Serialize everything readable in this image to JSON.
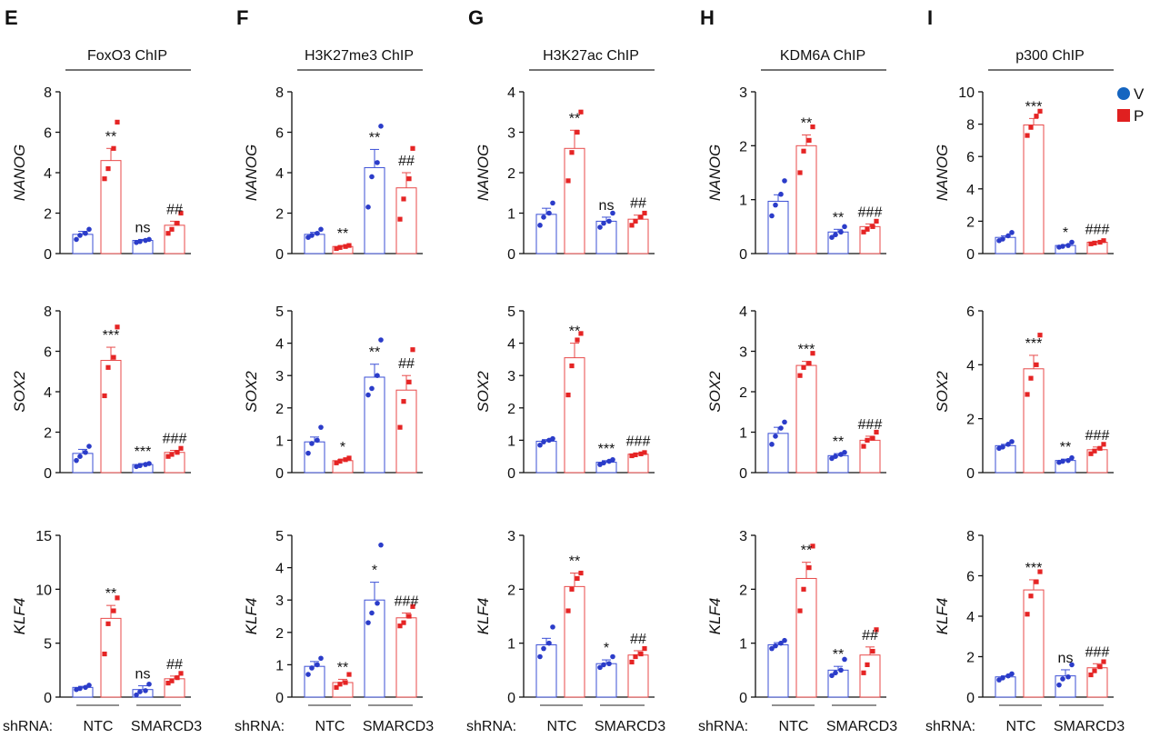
{
  "legend": {
    "items": [
      {
        "label": "V",
        "color": "#1565c0",
        "shape": "circle"
      },
      {
        "label": "P",
        "color": "#e02020",
        "shape": "square"
      }
    ],
    "placement": "top-right"
  },
  "colors": {
    "V": "#2b3cc9",
    "P": "#e52424",
    "V_bar": "#3b4fd6",
    "P_bar": "#e84a4a"
  },
  "shrna_label": "shRNA:",
  "group_labels": [
    "NTC",
    "SMARCD3"
  ],
  "genes": [
    "NANOG",
    "SOX2",
    "KLF4"
  ],
  "chart_data": [
    {
      "panel": "E",
      "title": "FoxO3 ChIP",
      "type": "bar",
      "rows": [
        {
          "ylabel": "NANOG",
          "ylim": [
            0,
            8
          ],
          "ticks": [
            0,
            2,
            4,
            6,
            8
          ],
          "values": [
            0.95,
            4.6,
            0.65,
            1.4
          ],
          "errors": [
            0.15,
            0.6,
            0.05,
            0.2
          ],
          "points": [
            [
              0.7,
              0.9,
              1.0,
              1.2
            ],
            [
              3.7,
              4.2,
              5.2,
              6.5
            ],
            [
              0.55,
              0.6,
              0.65,
              0.7
            ],
            [
              1.0,
              1.2,
              1.5,
              2.0
            ]
          ],
          "annotations": [
            "",
            "**",
            "ns",
            "##"
          ]
        },
        {
          "ylabel": "SOX2",
          "ylim": [
            0,
            8
          ],
          "ticks": [
            0,
            2,
            4,
            6,
            8
          ],
          "values": [
            0.95,
            5.55,
            0.4,
            1.0
          ],
          "errors": [
            0.2,
            0.65,
            0.05,
            0.1
          ],
          "points": [
            [
              0.6,
              0.8,
              1.0,
              1.3
            ],
            [
              3.8,
              5.2,
              5.7,
              7.2
            ],
            [
              0.3,
              0.35,
              0.4,
              0.45
            ],
            [
              0.8,
              0.9,
              1.0,
              1.2
            ]
          ],
          "annotations": [
            "",
            "***",
            "***",
            "###"
          ]
        },
        {
          "ylabel": "KLF4",
          "ylim": [
            0,
            15
          ],
          "ticks": [
            0,
            5,
            10,
            15
          ],
          "values": [
            0.9,
            7.3,
            0.7,
            1.7
          ],
          "errors": [
            0.1,
            1.2,
            0.35,
            0.25
          ],
          "points": [
            [
              0.7,
              0.8,
              0.9,
              1.1
            ],
            [
              4.0,
              6.8,
              8.0,
              9.2
            ],
            [
              0.2,
              0.5,
              0.6,
              1.2
            ],
            [
              1.3,
              1.5,
              1.8,
              2.2
            ]
          ],
          "annotations": [
            "",
            "**",
            "ns",
            "##"
          ]
        }
      ]
    },
    {
      "panel": "F",
      "title": "H3K27me3 ChIP",
      "type": "bar",
      "rows": [
        {
          "ylabel": "NANOG",
          "ylim": [
            0,
            8
          ],
          "ticks": [
            0,
            2,
            4,
            6,
            8
          ],
          "values": [
            0.95,
            0.35,
            4.25,
            3.25
          ],
          "errors": [
            0.1,
            0.05,
            0.9,
            0.75
          ],
          "points": [
            [
              0.8,
              0.9,
              1.0,
              1.2
            ],
            [
              0.25,
              0.3,
              0.35,
              0.4
            ],
            [
              2.3,
              3.8,
              4.5,
              6.3
            ],
            [
              1.7,
              2.7,
              3.7,
              5.2
            ]
          ],
          "annotations": [
            "",
            "**",
            "**",
            "##"
          ]
        },
        {
          "ylabel": "SOX2",
          "ylim": [
            0,
            5
          ],
          "ticks": [
            0,
            1,
            2,
            3,
            4,
            5
          ],
          "values": [
            0.95,
            0.37,
            2.95,
            2.55
          ],
          "errors": [
            0.15,
            0.05,
            0.4,
            0.45
          ],
          "points": [
            [
              0.6,
              0.9,
              1.0,
              1.4
            ],
            [
              0.3,
              0.35,
              0.4,
              0.45
            ],
            [
              2.4,
              2.6,
              3.0,
              4.1
            ],
            [
              1.4,
              2.2,
              2.8,
              3.8
            ]
          ],
          "annotations": [
            "",
            "*",
            "**",
            "##"
          ]
        },
        {
          "ylabel": "KLF4",
          "ylim": [
            0,
            5
          ],
          "ticks": [
            0,
            1,
            2,
            3,
            4,
            5
          ],
          "values": [
            0.95,
            0.45,
            3.0,
            2.45
          ],
          "errors": [
            0.15,
            0.1,
            0.55,
            0.15
          ],
          "points": [
            [
              0.7,
              0.9,
              1.0,
              1.2
            ],
            [
              0.3,
              0.4,
              0.45,
              0.7
            ],
            [
              2.3,
              2.6,
              2.9,
              4.7
            ],
            [
              2.2,
              2.3,
              2.5,
              2.8
            ]
          ],
          "annotations": [
            "",
            "**",
            "*",
            "###"
          ]
        }
      ]
    },
    {
      "panel": "G",
      "title": "H3K27ac ChIP",
      "type": "bar",
      "rows": [
        {
          "ylabel": "NANOG",
          "ylim": [
            0,
            4
          ],
          "ticks": [
            0,
            1,
            2,
            3,
            4
          ],
          "values": [
            0.97,
            2.6,
            0.8,
            0.85
          ],
          "errors": [
            0.15,
            0.45,
            0.1,
            0.1
          ],
          "points": [
            [
              0.7,
              0.9,
              1.0,
              1.25
            ],
            [
              1.8,
              2.5,
              3.0,
              3.5
            ],
            [
              0.65,
              0.75,
              0.8,
              1.0
            ],
            [
              0.7,
              0.8,
              0.9,
              1.0
            ]
          ],
          "annotations": [
            "",
            "**",
            "ns",
            "##"
          ]
        },
        {
          "ylabel": "SOX2",
          "ylim": [
            0,
            5
          ],
          "ticks": [
            0,
            1,
            2,
            3,
            4,
            5
          ],
          "values": [
            0.97,
            3.55,
            0.32,
            0.57
          ],
          "errors": [
            0.05,
            0.45,
            0.05,
            0.03
          ],
          "points": [
            [
              0.85,
              0.95,
              1.0,
              1.05
            ],
            [
              2.4,
              3.3,
              4.1,
              4.3
            ],
            [
              0.25,
              0.3,
              0.35,
              0.4
            ],
            [
              0.52,
              0.55,
              0.58,
              0.62
            ]
          ],
          "annotations": [
            "",
            "**",
            "***",
            "###"
          ]
        },
        {
          "ylabel": "KLF4",
          "ylim": [
            0,
            3
          ],
          "ticks": [
            0,
            1,
            2,
            3
          ],
          "values": [
            0.97,
            2.05,
            0.62,
            0.78
          ],
          "errors": [
            0.12,
            0.25,
            0.07,
            0.08
          ],
          "points": [
            [
              0.75,
              0.9,
              1.0,
              1.3
            ],
            [
              1.6,
              2.0,
              2.2,
              2.3
            ],
            [
              0.55,
              0.6,
              0.62,
              0.75
            ],
            [
              0.65,
              0.75,
              0.8,
              0.9
            ]
          ],
          "annotations": [
            "",
            "**",
            "*",
            "##"
          ]
        }
      ]
    },
    {
      "panel": "H",
      "title": "KDM6A ChIP",
      "type": "bar",
      "rows": [
        {
          "ylabel": "NANOG",
          "ylim": [
            0,
            3
          ],
          "ticks": [
            0,
            1,
            2,
            3
          ],
          "values": [
            0.97,
            2.0,
            0.4,
            0.5
          ],
          "errors": [
            0.12,
            0.2,
            0.05,
            0.05
          ],
          "points": [
            [
              0.7,
              0.9,
              1.1,
              1.35
            ],
            [
              1.5,
              1.9,
              2.1,
              2.35
            ],
            [
              0.3,
              0.35,
              0.4,
              0.5
            ],
            [
              0.4,
              0.45,
              0.5,
              0.6
            ]
          ],
          "annotations": [
            "",
            "**",
            "**",
            "###"
          ]
        },
        {
          "ylabel": "SOX2",
          "ylim": [
            0,
            4
          ],
          "ticks": [
            0,
            1,
            2,
            3,
            4
          ],
          "values": [
            0.97,
            2.65,
            0.42,
            0.8
          ],
          "errors": [
            0.15,
            0.1,
            0.05,
            0.1
          ],
          "points": [
            [
              0.7,
              0.9,
              1.1,
              1.25
            ],
            [
              2.4,
              2.6,
              2.7,
              2.95
            ],
            [
              0.35,
              0.4,
              0.45,
              0.5
            ],
            [
              0.65,
              0.8,
              0.85,
              1.0
            ]
          ],
          "annotations": [
            "",
            "***",
            "**",
            "###"
          ]
        },
        {
          "ylabel": "KLF4",
          "ylim": [
            0,
            3
          ],
          "ticks": [
            0,
            1,
            2,
            3
          ],
          "values": [
            0.97,
            2.2,
            0.5,
            0.78
          ],
          "errors": [
            0.04,
            0.3,
            0.07,
            0.15
          ],
          "points": [
            [
              0.9,
              0.95,
              1.0,
              1.05
            ],
            [
              1.6,
              2.0,
              2.4,
              2.8
            ],
            [
              0.4,
              0.45,
              0.5,
              0.7
            ],
            [
              0.45,
              0.6,
              0.85,
              1.25
            ]
          ],
          "annotations": [
            "",
            "**",
            "**",
            "##"
          ]
        }
      ]
    },
    {
      "panel": "I",
      "title": "p300 ChIP",
      "type": "bar",
      "rows": [
        {
          "ylabel": "NANOG",
          "ylim": [
            0,
            10
          ],
          "ticks": [
            0,
            2,
            4,
            6,
            8,
            10
          ],
          "values": [
            1.0,
            7.95,
            0.5,
            0.7
          ],
          "errors": [
            0.1,
            0.4,
            0.05,
            0.05
          ],
          "points": [
            [
              0.8,
              0.9,
              1.1,
              1.3
            ],
            [
              7.3,
              7.8,
              8.5,
              8.8
            ],
            [
              0.4,
              0.45,
              0.5,
              0.7
            ],
            [
              0.6,
              0.65,
              0.7,
              0.8
            ]
          ],
          "annotations": [
            "",
            "***",
            "*",
            "###"
          ]
        },
        {
          "ylabel": "SOX2",
          "ylim": [
            0,
            6
          ],
          "ticks": [
            0,
            2,
            4,
            6
          ],
          "values": [
            1.0,
            3.85,
            0.45,
            0.85
          ],
          "errors": [
            0.05,
            0.5,
            0.05,
            0.1
          ],
          "points": [
            [
              0.9,
              0.95,
              1.05,
              1.15
            ],
            [
              2.9,
              3.5,
              4.0,
              5.1
            ],
            [
              0.38,
              0.42,
              0.45,
              0.55
            ],
            [
              0.7,
              0.8,
              0.9,
              1.05
            ]
          ],
          "annotations": [
            "",
            "***",
            "**",
            "###"
          ]
        },
        {
          "ylabel": "KLF4",
          "ylim": [
            0,
            8
          ],
          "ticks": [
            0,
            2,
            4,
            6,
            8
          ],
          "values": [
            1.0,
            5.3,
            1.05,
            1.45
          ],
          "errors": [
            0.05,
            0.5,
            0.3,
            0.2
          ],
          "points": [
            [
              0.85,
              0.95,
              1.05,
              1.15
            ],
            [
              4.1,
              5.0,
              5.7,
              6.2
            ],
            [
              0.6,
              0.9,
              1.0,
              1.6
            ],
            [
              1.1,
              1.3,
              1.5,
              1.75
            ]
          ],
          "annotations": [
            "",
            "***",
            "ns",
            "###"
          ]
        }
      ]
    }
  ]
}
